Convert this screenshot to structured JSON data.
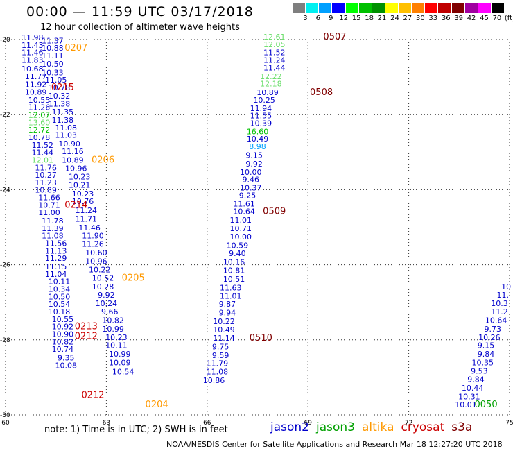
{
  "header": {
    "title": "00:00 — 11:59 UTC 03/17/2018",
    "subtitle": "12 hour collection of altimeter wave heights"
  },
  "color_scale": {
    "colors": [
      "#7f7f7f",
      "#00f0f0",
      "#00a0ff",
      "#0000ff",
      "#00ff00",
      "#00c000",
      "#009000",
      "#ffff00",
      "#ffc000",
      "#ff8000",
      "#ff0000",
      "#c00000",
      "#800000",
      "#a000a0",
      "#ff00ff",
      "#000000"
    ],
    "ticks": [
      "3",
      "6",
      "9",
      "12",
      "15",
      "18",
      "21",
      "24",
      "27",
      "30",
      "33",
      "36",
      "39",
      "42",
      "45",
      "70",
      "(ft)"
    ]
  },
  "footer": {
    "note": "note: 1) Time is in UTC; 2) SWH is in feet",
    "credit": "NOAA/NESDIS Center for Satellite Applications and Research   Mar 18 12:27:20 UTC 2018",
    "satellites": [
      {
        "name": "jason2",
        "color": "#0000cc"
      },
      {
        "name": "jason3",
        "color": "#00a000"
      },
      {
        "name": "altika",
        "color": "#ff9900"
      },
      {
        "name": "cryosat",
        "color": "#cc0000"
      },
      {
        "name": "s3a",
        "color": "#800000"
      }
    ]
  },
  "chart_data": {
    "type": "scatter",
    "title": "",
    "xlabel": "",
    "ylabel": "",
    "xlim": [
      60,
      75
    ],
    "ylim": [
      -30,
      -20
    ],
    "x_ticks": [
      60,
      63,
      66,
      69,
      72,
      75
    ],
    "y_ticks": [
      -20,
      -22,
      -24,
      -26,
      -28,
      -30
    ],
    "x_tick_labels": [
      "60",
      "63",
      "66",
      "69",
      "72",
      "75"
    ],
    "y_tick_labels": [
      "-20",
      "-22",
      "-24",
      "-26",
      "-28",
      "-30"
    ],
    "grid": true,
    "points": [
      {
        "x": 60.8,
        "y": -20.02,
        "label": "11.98",
        "color": "#0000cc"
      },
      {
        "x": 61.4,
        "y": -20.1,
        "label": "11.37",
        "color": "#0000cc"
      },
      {
        "x": 60.8,
        "y": -20.22,
        "label": "11.43",
        "color": "#0000cc"
      },
      {
        "x": 61.4,
        "y": -20.3,
        "label": "10.88",
        "color": "#0000cc"
      },
      {
        "x": 60.8,
        "y": -20.42,
        "label": "11.46",
        "color": "#0000cc"
      },
      {
        "x": 61.4,
        "y": -20.5,
        "label": "11.11",
        "color": "#0000cc"
      },
      {
        "x": 60.8,
        "y": -20.62,
        "label": "11.83",
        "color": "#0000cc"
      },
      {
        "x": 61.4,
        "y": -20.72,
        "label": "10.50",
        "color": "#0000cc"
      },
      {
        "x": 60.8,
        "y": -20.85,
        "label": "10.68",
        "color": "#0000cc"
      },
      {
        "x": 61.4,
        "y": -20.95,
        "label": "10.33",
        "color": "#0000cc"
      },
      {
        "x": 60.9,
        "y": -21.05,
        "label": "11.77",
        "color": "#0000cc"
      },
      {
        "x": 61.5,
        "y": -21.15,
        "label": "11.05",
        "color": "#0000cc"
      },
      {
        "x": 60.9,
        "y": -21.27,
        "label": "11.92",
        "color": "#0000cc"
      },
      {
        "x": 61.6,
        "y": -21.35,
        "label": "10.78",
        "color": "#0000cc"
      },
      {
        "x": 60.9,
        "y": -21.47,
        "label": "10.89",
        "color": "#0000cc"
      },
      {
        "x": 61.6,
        "y": -21.57,
        "label": "10.32",
        "color": "#0000cc"
      },
      {
        "x": 61.0,
        "y": -21.68,
        "label": "10.55",
        "color": "#0000cc"
      },
      {
        "x": 61.6,
        "y": -21.78,
        "label": "11.38",
        "color": "#0000cc"
      },
      {
        "x": 61.0,
        "y": -21.88,
        "label": "11.26",
        "color": "#0000cc"
      },
      {
        "x": 61.0,
        "y": -22.08,
        "label": "12.07",
        "color": "#00c000"
      },
      {
        "x": 61.7,
        "y": -22.0,
        "label": "11.35",
        "color": "#0000cc"
      },
      {
        "x": 61.0,
        "y": -22.28,
        "label": "13.60",
        "color": "#66dd66"
      },
      {
        "x": 61.7,
        "y": -22.22,
        "label": "11.38",
        "color": "#0000cc"
      },
      {
        "x": 61.0,
        "y": -22.48,
        "label": "12.72",
        "color": "#00c000"
      },
      {
        "x": 61.8,
        "y": -22.42,
        "label": "11.08",
        "color": "#0000cc"
      },
      {
        "x": 61.0,
        "y": -22.68,
        "label": "10.78",
        "color": "#0000cc"
      },
      {
        "x": 61.8,
        "y": -22.62,
        "label": "11.03",
        "color": "#0000cc"
      },
      {
        "x": 61.1,
        "y": -22.88,
        "label": "11.52",
        "color": "#0000cc"
      },
      {
        "x": 61.9,
        "y": -22.85,
        "label": "10.90",
        "color": "#0000cc"
      },
      {
        "x": 61.1,
        "y": -23.08,
        "label": "11.44",
        "color": "#0000cc"
      },
      {
        "x": 62.0,
        "y": -23.05,
        "label": "11.16",
        "color": "#0000cc"
      },
      {
        "x": 61.1,
        "y": -23.28,
        "label": "12.01",
        "color": "#66dd66"
      },
      {
        "x": 62.0,
        "y": -23.28,
        "label": "10.89",
        "color": "#0000cc"
      },
      {
        "x": 61.2,
        "y": -23.48,
        "label": "11.76",
        "color": "#0000cc"
      },
      {
        "x": 62.1,
        "y": -23.5,
        "label": "10.96",
        "color": "#0000cc"
      },
      {
        "x": 61.2,
        "y": -23.68,
        "label": "10.27",
        "color": "#0000cc"
      },
      {
        "x": 62.2,
        "y": -23.72,
        "label": "10.23",
        "color": "#0000cc"
      },
      {
        "x": 61.2,
        "y": -23.88,
        "label": "11.23",
        "color": "#0000cc"
      },
      {
        "x": 62.2,
        "y": -23.95,
        "label": "10.21",
        "color": "#0000cc"
      },
      {
        "x": 61.2,
        "y": -24.08,
        "label": "10.89",
        "color": "#0000cc"
      },
      {
        "x": 62.3,
        "y": -24.18,
        "label": "10.23",
        "color": "#0000cc"
      },
      {
        "x": 61.3,
        "y": -24.28,
        "label": "11.66",
        "color": "#0000cc"
      },
      {
        "x": 62.3,
        "y": -24.38,
        "label": "10.76",
        "color": "#0000cc"
      },
      {
        "x": 61.3,
        "y": -24.48,
        "label": "10.71",
        "color": "#0000cc"
      },
      {
        "x": 62.4,
        "y": -24.62,
        "label": "11.24",
        "color": "#0000cc"
      },
      {
        "x": 61.3,
        "y": -24.68,
        "label": "11.00",
        "color": "#0000cc"
      },
      {
        "x": 62.4,
        "y": -24.85,
        "label": "11.71",
        "color": "#0000cc"
      },
      {
        "x": 61.4,
        "y": -24.9,
        "label": "11.78",
        "color": "#0000cc"
      },
      {
        "x": 62.5,
        "y": -25.08,
        "label": "11.46",
        "color": "#0000cc"
      },
      {
        "x": 61.4,
        "y": -25.1,
        "label": "11.39",
        "color": "#0000cc"
      },
      {
        "x": 62.6,
        "y": -25.3,
        "label": "11.90",
        "color": "#0000cc"
      },
      {
        "x": 61.4,
        "y": -25.3,
        "label": "11.08",
        "color": "#0000cc"
      },
      {
        "x": 61.5,
        "y": -25.5,
        "label": "11.56",
        "color": "#0000cc"
      },
      {
        "x": 62.6,
        "y": -25.52,
        "label": "11.26",
        "color": "#0000cc"
      },
      {
        "x": 61.5,
        "y": -25.7,
        "label": "11.13",
        "color": "#0000cc"
      },
      {
        "x": 62.7,
        "y": -25.75,
        "label": "10.60",
        "color": "#0000cc"
      },
      {
        "x": 61.5,
        "y": -25.9,
        "label": "11.29",
        "color": "#0000cc"
      },
      {
        "x": 62.7,
        "y": -25.98,
        "label": "10.96",
        "color": "#0000cc"
      },
      {
        "x": 61.5,
        "y": -26.12,
        "label": "11.15",
        "color": "#0000cc"
      },
      {
        "x": 62.8,
        "y": -26.2,
        "label": "10.22",
        "color": "#0000cc"
      },
      {
        "x": 61.5,
        "y": -26.32,
        "label": "11.04",
        "color": "#0000cc"
      },
      {
        "x": 62.9,
        "y": -26.42,
        "label": "10.52",
        "color": "#0000cc"
      },
      {
        "x": 61.6,
        "y": -26.52,
        "label": "10.11",
        "color": "#0000cc"
      },
      {
        "x": 62.9,
        "y": -26.65,
        "label": "10.28",
        "color": "#0000cc"
      },
      {
        "x": 61.6,
        "y": -26.72,
        "label": "10.34",
        "color": "#0000cc"
      },
      {
        "x": 63.0,
        "y": -26.88,
        "label": "9.92",
        "color": "#0000cc"
      },
      {
        "x": 61.6,
        "y": -26.92,
        "label": "10.50",
        "color": "#0000cc"
      },
      {
        "x": 61.6,
        "y": -27.12,
        "label": "10.54",
        "color": "#0000cc"
      },
      {
        "x": 63.0,
        "y": -27.1,
        "label": "10.24",
        "color": "#0000cc"
      },
      {
        "x": 61.6,
        "y": -27.32,
        "label": "10.18",
        "color": "#0000cc"
      },
      {
        "x": 63.1,
        "y": -27.32,
        "label": "9.66",
        "color": "#0000cc"
      },
      {
        "x": 61.7,
        "y": -27.52,
        "label": "10.55",
        "color": "#0000cc"
      },
      {
        "x": 63.2,
        "y": -27.55,
        "label": "10.82",
        "color": "#0000cc"
      },
      {
        "x": 61.7,
        "y": -27.72,
        "label": "10.92",
        "color": "#0000cc"
      },
      {
        "x": 63.2,
        "y": -27.78,
        "label": "10.99",
        "color": "#0000cc"
      },
      {
        "x": 61.7,
        "y": -27.92,
        "label": "10.90",
        "color": "#0000cc"
      },
      {
        "x": 63.3,
        "y": -28.0,
        "label": "10.23",
        "color": "#0000cc"
      },
      {
        "x": 61.7,
        "y": -28.12,
        "label": "10.82",
        "color": "#0000cc"
      },
      {
        "x": 63.3,
        "y": -28.22,
        "label": "10.11",
        "color": "#0000cc"
      },
      {
        "x": 61.7,
        "y": -28.32,
        "label": "10.74",
        "color": "#0000cc"
      },
      {
        "x": 63.4,
        "y": -28.45,
        "label": "10.99",
        "color": "#0000cc"
      },
      {
        "x": 61.8,
        "y": -28.55,
        "label": "9.35",
        "color": "#0000cc"
      },
      {
        "x": 63.4,
        "y": -28.68,
        "label": "10.09",
        "color": "#0000cc"
      },
      {
        "x": 61.8,
        "y": -28.75,
        "label": "10.08",
        "color": "#0000cc"
      },
      {
        "x": 63.5,
        "y": -28.92,
        "label": "10.54",
        "color": "#0000cc"
      },
      {
        "x": 68.0,
        "y": -20.0,
        "label": "12.61",
        "color": "#66dd66"
      },
      {
        "x": 68.0,
        "y": -20.2,
        "label": "12.05",
        "color": "#66dd66"
      },
      {
        "x": 68.0,
        "y": -20.42,
        "label": "11.52",
        "color": "#0000cc"
      },
      {
        "x": 68.0,
        "y": -20.62,
        "label": "11.24",
        "color": "#0000cc"
      },
      {
        "x": 68.0,
        "y": -20.82,
        "label": "11.44",
        "color": "#0000cc"
      },
      {
        "x": 67.9,
        "y": -21.05,
        "label": "12.22",
        "color": "#66dd66"
      },
      {
        "x": 67.9,
        "y": -21.25,
        "label": "12.18",
        "color": "#66dd66"
      },
      {
        "x": 67.8,
        "y": -21.48,
        "label": "10.89",
        "color": "#0000cc"
      },
      {
        "x": 67.7,
        "y": -21.68,
        "label": "10.25",
        "color": "#0000cc"
      },
      {
        "x": 67.6,
        "y": -21.9,
        "label": "11.94",
        "color": "#0000cc"
      },
      {
        "x": 67.6,
        "y": -22.1,
        "label": "11.55",
        "color": "#0000cc"
      },
      {
        "x": 67.6,
        "y": -22.3,
        "label": "10.39",
        "color": "#0000cc"
      },
      {
        "x": 67.5,
        "y": -22.52,
        "label": "16.60",
        "color": "#00c000"
      },
      {
        "x": 67.5,
        "y": -22.72,
        "label": "10.49",
        "color": "#0000cc"
      },
      {
        "x": 67.5,
        "y": -22.92,
        "label": "8.98",
        "color": "#00a0ff"
      },
      {
        "x": 67.4,
        "y": -23.15,
        "label": "9.15",
        "color": "#0000cc"
      },
      {
        "x": 67.4,
        "y": -23.38,
        "label": "9.92",
        "color": "#0000cc"
      },
      {
        "x": 67.3,
        "y": -23.6,
        "label": "10.00",
        "color": "#0000cc"
      },
      {
        "x": 67.3,
        "y": -23.8,
        "label": "9.46",
        "color": "#0000cc"
      },
      {
        "x": 67.3,
        "y": -24.02,
        "label": "10.37",
        "color": "#0000cc"
      },
      {
        "x": 67.2,
        "y": -24.22,
        "label": "9.25",
        "color": "#0000cc"
      },
      {
        "x": 67.1,
        "y": -24.45,
        "label": "11.61",
        "color": "#0000cc"
      },
      {
        "x": 67.1,
        "y": -24.65,
        "label": "10.64",
        "color": "#0000cc"
      },
      {
        "x": 67.0,
        "y": -24.88,
        "label": "11.01",
        "color": "#0000cc"
      },
      {
        "x": 67.0,
        "y": -25.1,
        "label": "10.71",
        "color": "#0000cc"
      },
      {
        "x": 67.0,
        "y": -25.32,
        "label": "10.00",
        "color": "#0000cc"
      },
      {
        "x": 66.9,
        "y": -25.55,
        "label": "10.59",
        "color": "#0000cc"
      },
      {
        "x": 66.9,
        "y": -25.77,
        "label": "9.40",
        "color": "#0000cc"
      },
      {
        "x": 66.8,
        "y": -26.0,
        "label": "10.16",
        "color": "#0000cc"
      },
      {
        "x": 66.8,
        "y": -26.22,
        "label": "10.81",
        "color": "#0000cc"
      },
      {
        "x": 66.8,
        "y": -26.45,
        "label": "10.51",
        "color": "#0000cc"
      },
      {
        "x": 66.7,
        "y": -26.68,
        "label": "11.63",
        "color": "#0000cc"
      },
      {
        "x": 66.7,
        "y": -26.9,
        "label": "11.01",
        "color": "#0000cc"
      },
      {
        "x": 66.6,
        "y": -27.12,
        "label": "9.87",
        "color": "#0000cc"
      },
      {
        "x": 66.6,
        "y": -27.35,
        "label": "9.94",
        "color": "#0000cc"
      },
      {
        "x": 66.5,
        "y": -27.58,
        "label": "10.22",
        "color": "#0000cc"
      },
      {
        "x": 66.5,
        "y": -27.8,
        "label": "10.49",
        "color": "#0000cc"
      },
      {
        "x": 66.5,
        "y": -28.02,
        "label": "11.14",
        "color": "#0000cc"
      },
      {
        "x": 66.4,
        "y": -28.25,
        "label": "9.75",
        "color": "#0000cc"
      },
      {
        "x": 66.4,
        "y": -28.48,
        "label": "9.59",
        "color": "#0000cc"
      },
      {
        "x": 66.3,
        "y": -28.7,
        "label": "11.79",
        "color": "#0000cc"
      },
      {
        "x": 66.3,
        "y": -28.92,
        "label": "11.08",
        "color": "#0000cc"
      },
      {
        "x": 66.2,
        "y": -29.15,
        "label": "10.86",
        "color": "#0000cc"
      },
      {
        "x": 74.9,
        "y": -26.65,
        "label": "10",
        "color": "#0000cc"
      },
      {
        "x": 74.8,
        "y": -26.88,
        "label": "11.",
        "color": "#0000cc"
      },
      {
        "x": 74.7,
        "y": -27.1,
        "label": "10.3",
        "color": "#0000cc"
      },
      {
        "x": 74.7,
        "y": -27.32,
        "label": "11.2",
        "color": "#0000cc"
      },
      {
        "x": 74.6,
        "y": -27.55,
        "label": "10.64",
        "color": "#0000cc"
      },
      {
        "x": 74.5,
        "y": -27.78,
        "label": "9.73",
        "color": "#0000cc"
      },
      {
        "x": 74.4,
        "y": -28.0,
        "label": "10.26",
        "color": "#0000cc"
      },
      {
        "x": 74.3,
        "y": -28.22,
        "label": "9.15",
        "color": "#0000cc"
      },
      {
        "x": 74.3,
        "y": -28.45,
        "label": "9.84",
        "color": "#0000cc"
      },
      {
        "x": 74.2,
        "y": -28.68,
        "label": "10.35",
        "color": "#0000cc"
      },
      {
        "x": 74.1,
        "y": -28.9,
        "label": "9.53",
        "color": "#0000cc"
      },
      {
        "x": 74.0,
        "y": -29.12,
        "label": "9.84",
        "color": "#0000cc"
      },
      {
        "x": 73.9,
        "y": -29.35,
        "label": "10.44",
        "color": "#0000cc"
      },
      {
        "x": 73.8,
        "y": -29.58,
        "label": "10.31",
        "color": "#0000cc"
      },
      {
        "x": 73.7,
        "y": -29.8,
        "label": "10.01",
        "color": "#0000cc"
      }
    ],
    "time_labels": [
      {
        "x": 62.1,
        "y": -20.3,
        "label": "0207",
        "color": "#ff9900"
      },
      {
        "x": 61.7,
        "y": -21.35,
        "label": "0215",
        "color": "#cc0000"
      },
      {
        "x": 62.9,
        "y": -23.28,
        "label": "0206",
        "color": "#ff9900"
      },
      {
        "x": 62.1,
        "y": -24.48,
        "label": "0214",
        "color": "#cc0000"
      },
      {
        "x": 63.8,
        "y": -26.42,
        "label": "0205",
        "color": "#ff9900"
      },
      {
        "x": 62.4,
        "y": -27.72,
        "label": "0213",
        "color": "#cc0000"
      },
      {
        "x": 62.4,
        "y": -27.98,
        "label": "0212",
        "color": "#cc0000"
      },
      {
        "x": 62.6,
        "y": -29.55,
        "label": "0212",
        "color": "#cc0000"
      },
      {
        "x": 64.5,
        "y": -29.8,
        "label": "0204",
        "color": "#ff9900"
      },
      {
        "x": 69.8,
        "y": -20.0,
        "label": "0507",
        "color": "#800000"
      },
      {
        "x": 69.4,
        "y": -21.48,
        "label": "0508",
        "color": "#800000"
      },
      {
        "x": 68.0,
        "y": -24.65,
        "label": "0509",
        "color": "#800000"
      },
      {
        "x": 67.6,
        "y": -28.02,
        "label": "0510",
        "color": "#800000"
      },
      {
        "x": 74.3,
        "y": -29.8,
        "label": "0050",
        "color": "#00a000"
      }
    ]
  }
}
